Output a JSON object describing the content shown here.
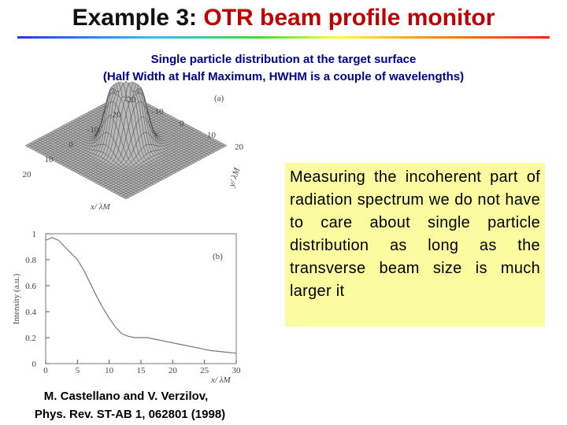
{
  "header": {
    "title_lead": "Example 3:",
    "title_rest": "OTR beam profile monitor"
  },
  "subtitle": [
    "Single particle distribution at the target surface",
    "(Half Width at Half Maximum, HWHM is a couple of wavelengths)"
  ],
  "figure_a": {
    "label": "(a)",
    "x_axis_label": "x/ λM",
    "y_axis_label": "y/ λM",
    "x_ticks": [
      -20,
      -10,
      0,
      10,
      20
    ],
    "y_ticks": [
      20,
      10,
      0,
      -10,
      -20
    ]
  },
  "chart_data": {
    "type": "line",
    "annotation": "(b)",
    "x_label": "x/ λM",
    "y_label": "Intensity (a.u.)",
    "x": [
      0,
      1,
      2,
      3,
      4,
      5,
      6,
      7,
      8,
      9,
      10,
      11,
      12,
      13,
      14,
      15,
      16,
      17,
      18,
      20,
      22,
      24,
      26,
      28,
      30
    ],
    "values": [
      0.95,
      0.97,
      0.95,
      0.9,
      0.85,
      0.8,
      0.72,
      0.62,
      0.52,
      0.43,
      0.35,
      0.28,
      0.23,
      0.21,
      0.2,
      0.2,
      0.2,
      0.19,
      0.18,
      0.16,
      0.14,
      0.12,
      0.1,
      0.09,
      0.08
    ],
    "color": "#777777",
    "xlim": [
      0,
      30
    ],
    "ylim": [
      0,
      1
    ],
    "xticks": [
      0,
      5,
      10,
      15,
      20,
      25,
      30
    ],
    "yticks": [
      0,
      0.2,
      0.4,
      0.6,
      0.8,
      1
    ],
    "grid": false
  },
  "note": "Measuring the incoherent part of radiation spectrum we do not have to care about single particle distribution as long as the transverse beam size is much larger it",
  "citation": [
    "M. Castellano and V. Verzilov,",
    "Phys. Rev. ST-AB 1, 062801 (1998)"
  ]
}
